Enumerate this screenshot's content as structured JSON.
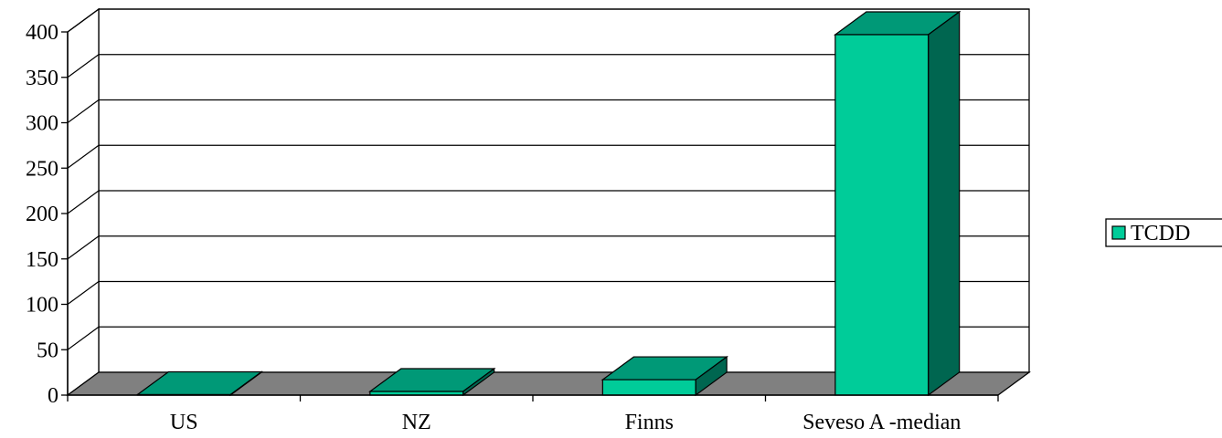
{
  "chart_data": {
    "type": "bar",
    "categories": [
      "US",
      "NZ",
      "Finns",
      "Seveso A -median"
    ],
    "series": [
      {
        "name": "TCDD",
        "values": [
          0.5,
          4,
          17,
          397
        ]
      }
    ],
    "title": "",
    "xlabel": "",
    "ylabel": "",
    "ylim": [
      0,
      400
    ],
    "yticks": [
      0,
      50,
      100,
      150,
      200,
      250,
      300,
      350,
      400
    ],
    "grid": true,
    "three_d": true,
    "legend_position": "right",
    "colors": {
      "bar_front": "#00CC99",
      "bar_top": "#009977",
      "bar_side": "#006650",
      "floor": "#808080",
      "wall": "#ffffff"
    }
  }
}
